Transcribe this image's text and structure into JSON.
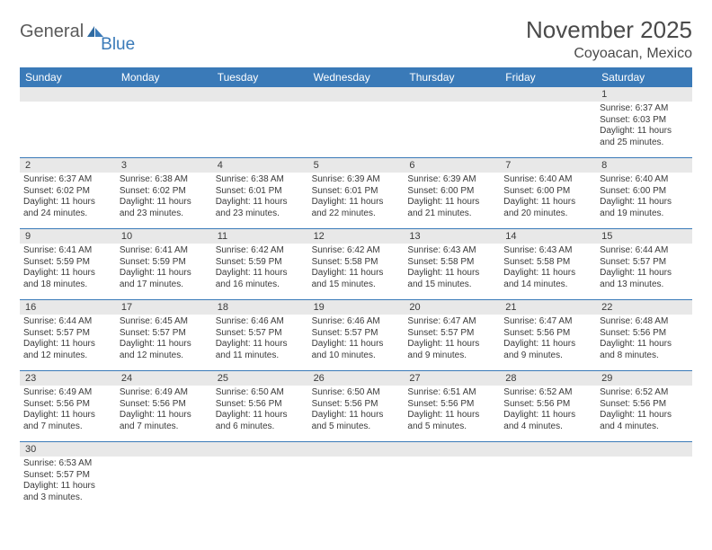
{
  "brand": {
    "part1": "General",
    "part2": "Blue"
  },
  "title": "November 2025",
  "location": "Coyoacan, Mexico",
  "colors": {
    "header_bg": "#3a7ab8",
    "header_text": "#ffffff",
    "daynum_bg": "#e8e8e8",
    "text": "#3a3a3a",
    "rule": "#3a7ab8",
    "page_bg": "#ffffff"
  },
  "day_names": [
    "Sunday",
    "Monday",
    "Tuesday",
    "Wednesday",
    "Thursday",
    "Friday",
    "Saturday"
  ],
  "weeks": [
    [
      null,
      null,
      null,
      null,
      null,
      null,
      {
        "n": "1",
        "sunrise": "6:37 AM",
        "sunset": "6:03 PM",
        "daylight": "11 hours and 25 minutes."
      }
    ],
    [
      {
        "n": "2",
        "sunrise": "6:37 AM",
        "sunset": "6:02 PM",
        "daylight": "11 hours and 24 minutes."
      },
      {
        "n": "3",
        "sunrise": "6:38 AM",
        "sunset": "6:02 PM",
        "daylight": "11 hours and 23 minutes."
      },
      {
        "n": "4",
        "sunrise": "6:38 AM",
        "sunset": "6:01 PM",
        "daylight": "11 hours and 23 minutes."
      },
      {
        "n": "5",
        "sunrise": "6:39 AM",
        "sunset": "6:01 PM",
        "daylight": "11 hours and 22 minutes."
      },
      {
        "n": "6",
        "sunrise": "6:39 AM",
        "sunset": "6:00 PM",
        "daylight": "11 hours and 21 minutes."
      },
      {
        "n": "7",
        "sunrise": "6:40 AM",
        "sunset": "6:00 PM",
        "daylight": "11 hours and 20 minutes."
      },
      {
        "n": "8",
        "sunrise": "6:40 AM",
        "sunset": "6:00 PM",
        "daylight": "11 hours and 19 minutes."
      }
    ],
    [
      {
        "n": "9",
        "sunrise": "6:41 AM",
        "sunset": "5:59 PM",
        "daylight": "11 hours and 18 minutes."
      },
      {
        "n": "10",
        "sunrise": "6:41 AM",
        "sunset": "5:59 PM",
        "daylight": "11 hours and 17 minutes."
      },
      {
        "n": "11",
        "sunrise": "6:42 AM",
        "sunset": "5:59 PM",
        "daylight": "11 hours and 16 minutes."
      },
      {
        "n": "12",
        "sunrise": "6:42 AM",
        "sunset": "5:58 PM",
        "daylight": "11 hours and 15 minutes."
      },
      {
        "n": "13",
        "sunrise": "6:43 AM",
        "sunset": "5:58 PM",
        "daylight": "11 hours and 15 minutes."
      },
      {
        "n": "14",
        "sunrise": "6:43 AM",
        "sunset": "5:58 PM",
        "daylight": "11 hours and 14 minutes."
      },
      {
        "n": "15",
        "sunrise": "6:44 AM",
        "sunset": "5:57 PM",
        "daylight": "11 hours and 13 minutes."
      }
    ],
    [
      {
        "n": "16",
        "sunrise": "6:44 AM",
        "sunset": "5:57 PM",
        "daylight": "11 hours and 12 minutes."
      },
      {
        "n": "17",
        "sunrise": "6:45 AM",
        "sunset": "5:57 PM",
        "daylight": "11 hours and 12 minutes."
      },
      {
        "n": "18",
        "sunrise": "6:46 AM",
        "sunset": "5:57 PM",
        "daylight": "11 hours and 11 minutes."
      },
      {
        "n": "19",
        "sunrise": "6:46 AM",
        "sunset": "5:57 PM",
        "daylight": "11 hours and 10 minutes."
      },
      {
        "n": "20",
        "sunrise": "6:47 AM",
        "sunset": "5:57 PM",
        "daylight": "11 hours and 9 minutes."
      },
      {
        "n": "21",
        "sunrise": "6:47 AM",
        "sunset": "5:56 PM",
        "daylight": "11 hours and 9 minutes."
      },
      {
        "n": "22",
        "sunrise": "6:48 AM",
        "sunset": "5:56 PM",
        "daylight": "11 hours and 8 minutes."
      }
    ],
    [
      {
        "n": "23",
        "sunrise": "6:49 AM",
        "sunset": "5:56 PM",
        "daylight": "11 hours and 7 minutes."
      },
      {
        "n": "24",
        "sunrise": "6:49 AM",
        "sunset": "5:56 PM",
        "daylight": "11 hours and 7 minutes."
      },
      {
        "n": "25",
        "sunrise": "6:50 AM",
        "sunset": "5:56 PM",
        "daylight": "11 hours and 6 minutes."
      },
      {
        "n": "26",
        "sunrise": "6:50 AM",
        "sunset": "5:56 PM",
        "daylight": "11 hours and 5 minutes."
      },
      {
        "n": "27",
        "sunrise": "6:51 AM",
        "sunset": "5:56 PM",
        "daylight": "11 hours and 5 minutes."
      },
      {
        "n": "28",
        "sunrise": "6:52 AM",
        "sunset": "5:56 PM",
        "daylight": "11 hours and 4 minutes."
      },
      {
        "n": "29",
        "sunrise": "6:52 AM",
        "sunset": "5:56 PM",
        "daylight": "11 hours and 4 minutes."
      }
    ],
    [
      {
        "n": "30",
        "sunrise": "6:53 AM",
        "sunset": "5:57 PM",
        "daylight": "11 hours and 3 minutes."
      },
      null,
      null,
      null,
      null,
      null,
      null
    ]
  ],
  "labels": {
    "sunrise": "Sunrise:",
    "sunset": "Sunset:",
    "daylight": "Daylight:"
  }
}
